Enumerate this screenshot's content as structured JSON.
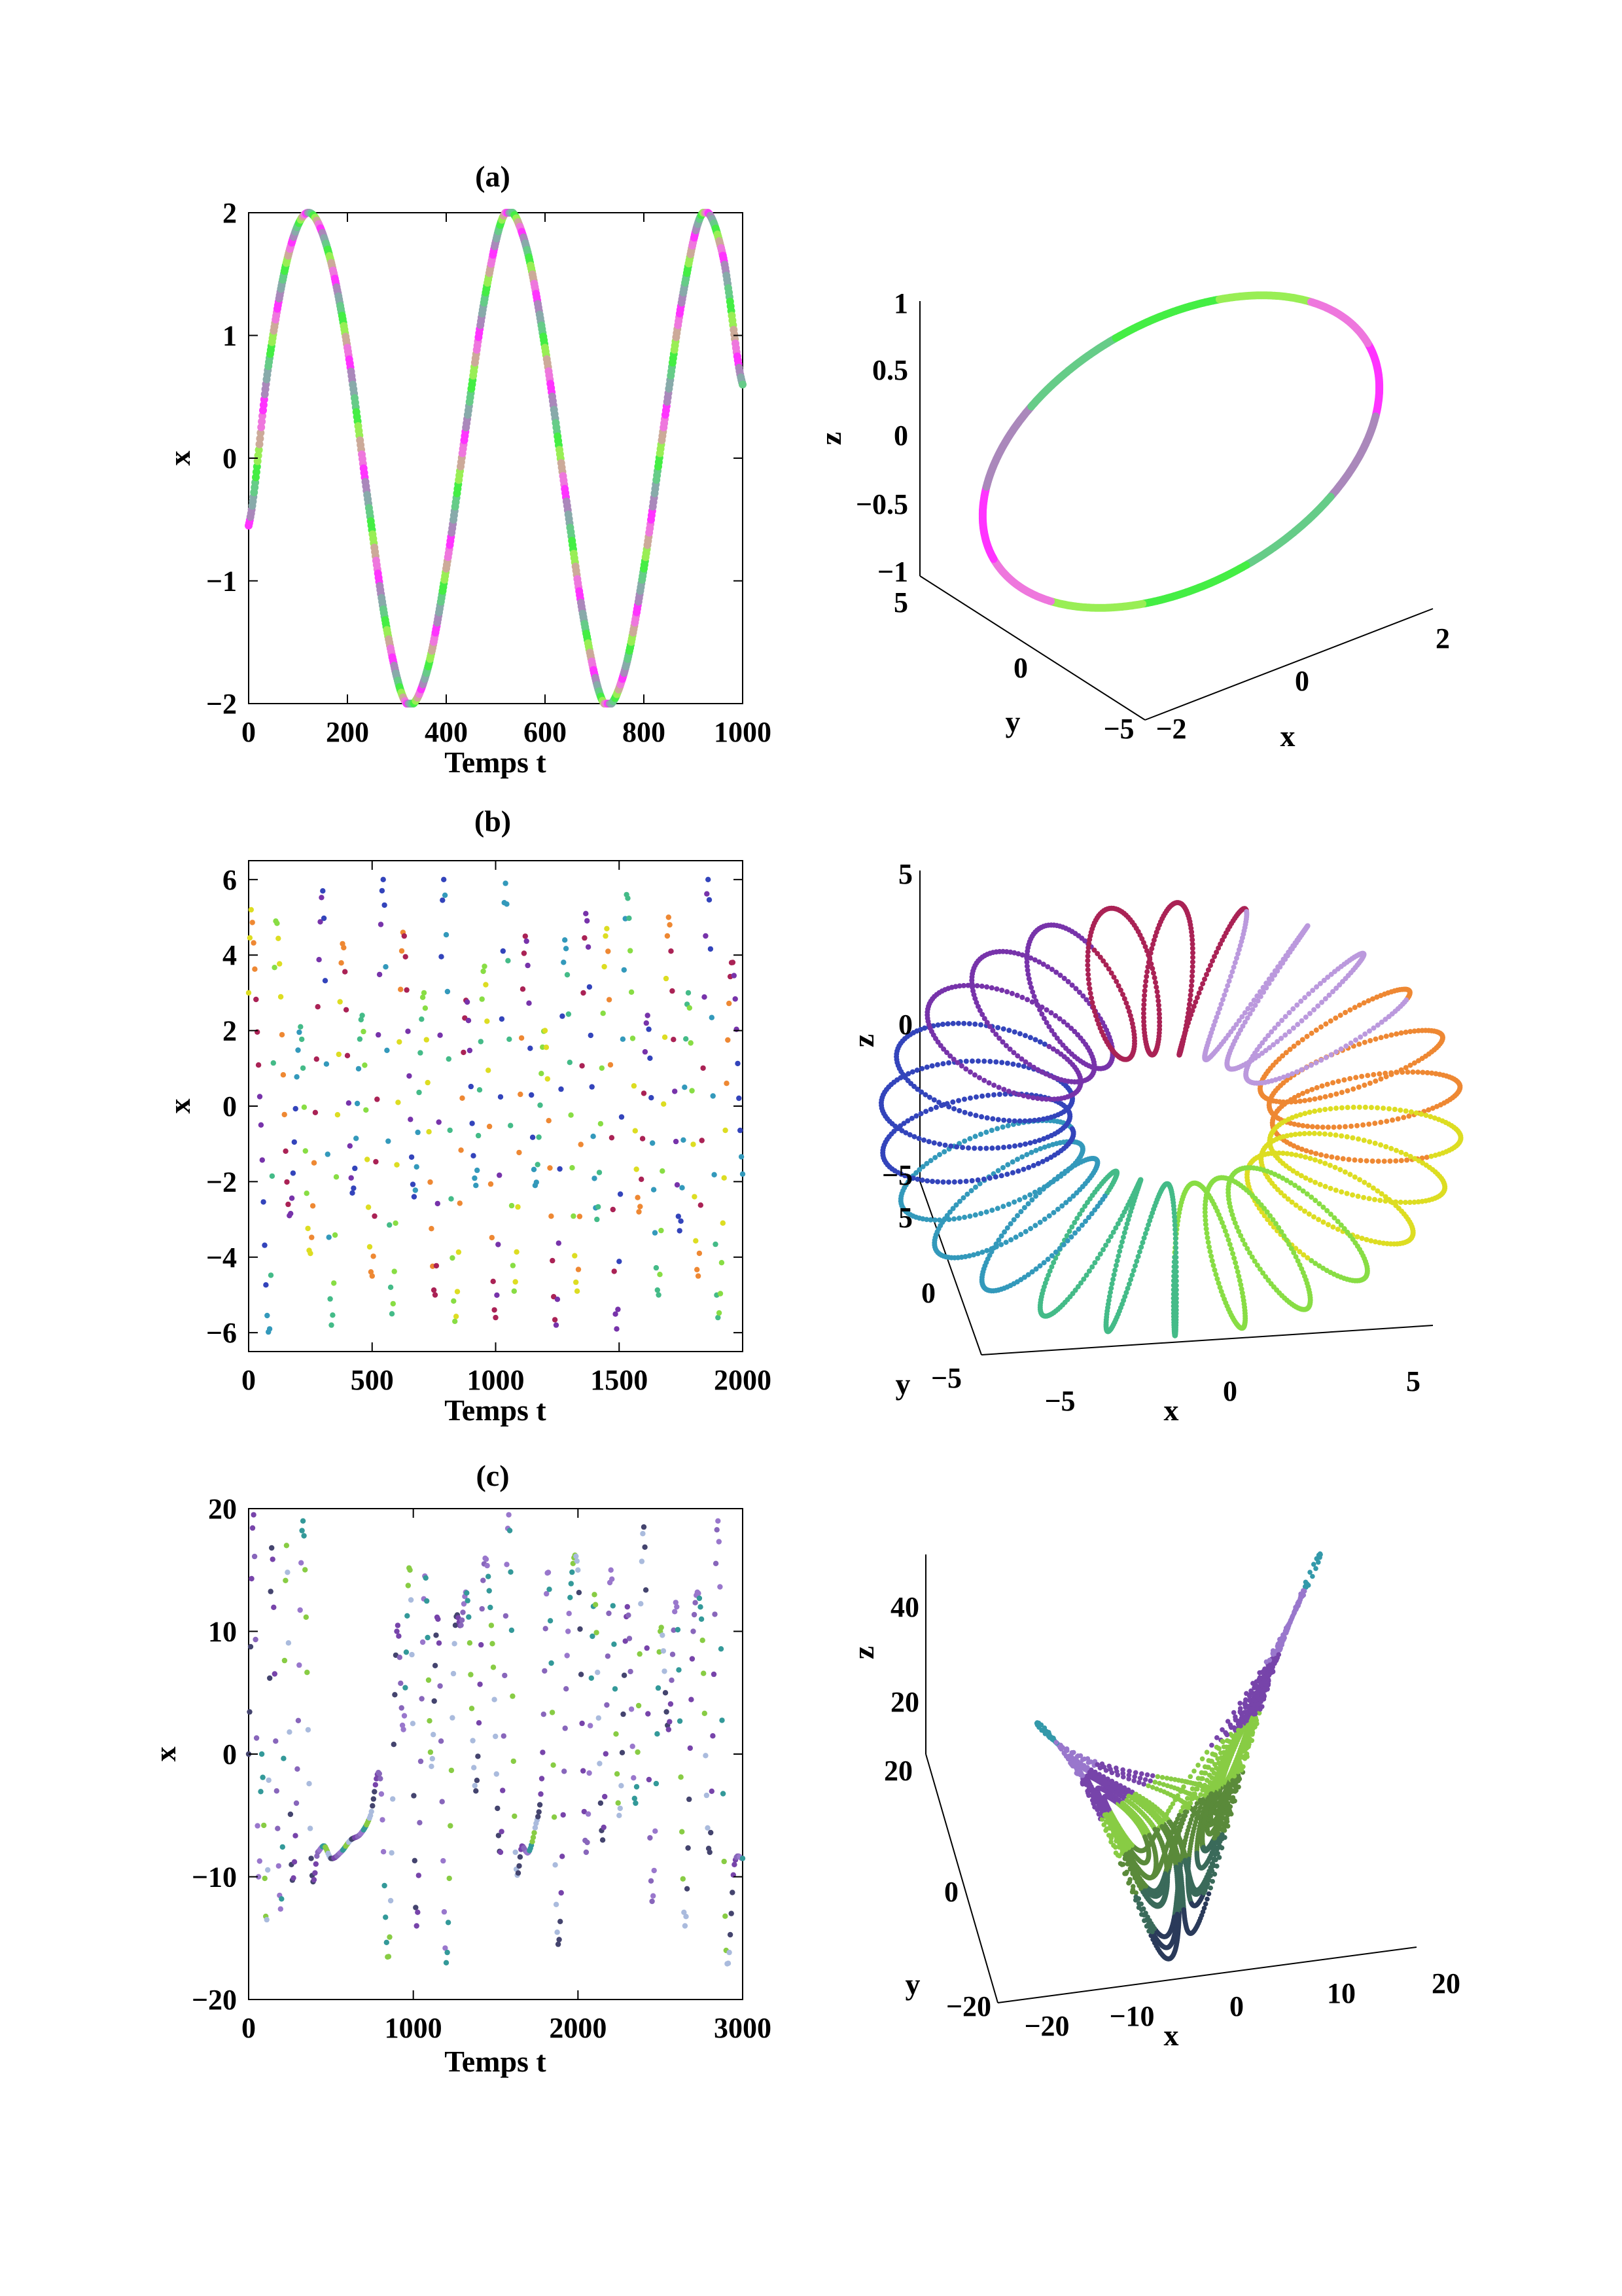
{
  "chart_data": [
    {
      "id": "a-time",
      "type": "scatter",
      "title": "(a)",
      "xlabel": "Temps t",
      "ylabel": "x",
      "xlim": [
        0,
        1000
      ],
      "ylim": [
        -2,
        2
      ],
      "xticks": [
        0,
        200,
        400,
        600,
        800,
        1000
      ],
      "yticks": [
        -2,
        -1,
        0,
        1,
        2
      ],
      "xtick_labels": [
        "0",
        "200",
        "400",
        "600",
        "800",
        "1000"
      ],
      "ytick_labels": [
        "−2",
        "−1",
        "0",
        "1",
        "2"
      ],
      "x": [
        0,
        40,
        80,
        120,
        160,
        200,
        240,
        280,
        320,
        360,
        400,
        440,
        480,
        520,
        560,
        600,
        640,
        680,
        720,
        760,
        800,
        840,
        880,
        920,
        960,
        1000
      ],
      "y": [
        -0.55,
        0.75,
        1.65,
        2.0,
        1.7,
        0.9,
        -0.3,
        -1.4,
        -2.0,
        -1.75,
        -0.9,
        0.25,
        1.35,
        2.0,
        1.75,
        0.9,
        -0.25,
        -1.35,
        -2.0,
        -1.75,
        -0.9,
        0.25,
        1.35,
        2.0,
        1.65,
        0.6
      ],
      "grid": false,
      "colors": [
        "#ff33ff",
        "#aa88bb",
        "#88aaaa",
        "#66cc88",
        "#44ee44",
        "#99ee55",
        "#ccaa99",
        "#ee77dd"
      ]
    },
    {
      "id": "a-phase",
      "type": "scatter3d",
      "xlabel": "x",
      "ylabel": "y",
      "zlabel": "z",
      "xticks": [
        -2,
        0,
        2
      ],
      "yticks": [
        -5,
        0,
        5
      ],
      "zticks": [
        -1,
        -0.5,
        0,
        0.5,
        1
      ],
      "xtick_labels": [
        "−2",
        "0",
        "2"
      ],
      "ytick_labels": [
        "−5",
        "0",
        "5"
      ],
      "ztick_labels": [
        "−1",
        "−0.5",
        "0",
        "0.5",
        "1"
      ],
      "attractor": "limit cycle",
      "colors": [
        "#ff33ff",
        "#aa88bb",
        "#66cc88",
        "#44ee44",
        "#99ee55",
        "#ee77dd"
      ]
    },
    {
      "id": "b-time",
      "type": "scatter",
      "title": "(b)",
      "xlabel": "Temps t",
      "ylabel": "x",
      "xlim": [
        0,
        2000
      ],
      "ylim": [
        -6.5,
        6.5
      ],
      "xticks": [
        0,
        500,
        1000,
        1500,
        2000
      ],
      "yticks": [
        -6,
        -4,
        -2,
        0,
        2,
        4,
        6
      ],
      "xtick_labels": [
        "0",
        "500",
        "1000",
        "1500",
        "2000"
      ],
      "ytick_labels": [
        "−6",
        "−4",
        "−2",
        "0",
        "2",
        "4",
        "6"
      ],
      "x": [
        0,
        10,
        50,
        85,
        110,
        165,
        210,
        250,
        300,
        335,
        380,
        420,
        460,
        500,
        545,
        580,
        625,
        670,
        710,
        755,
        790,
        835,
        880,
        920,
        955,
        1000,
        1040,
        1075,
        1120,
        1160,
        1200,
        1245,
        1280,
        1330,
        1365,
        1410,
        1450,
        1490,
        1530,
        1580,
        1615,
        1660,
        1700,
        1745,
        1780,
        1820,
        1860,
        1900,
        1955,
        2000
      ],
      "y": [
        3.0,
        5.2,
        -0.5,
        -5.9,
        4.9,
        -2.9,
        2.1,
        -3.9,
        5.7,
        -5.8,
        4.3,
        -2.3,
        2.4,
        -4.5,
        6.0,
        -5.5,
        4.6,
        -2.4,
        3.0,
        -5.0,
        6.0,
        -5.7,
        2.8,
        -2.1,
        3.7,
        -5.6,
        5.9,
        -4.9,
        4.5,
        -2.1,
        2.0,
        -5.8,
        4.4,
        -4.9,
        5.1,
        -3.0,
        4.7,
        -5.9,
        5.6,
        -2.8,
        2.4,
        -5.0,
        5.0,
        -3.3,
        3.0,
        -4.5,
        6.0,
        -5.6,
        3.8,
        -1.8
      ],
      "grid": false,
      "colors": [
        "#dddd22",
        "#ee8833",
        "#aa2255",
        "#7733aa",
        "#3344bb",
        "#3399bb",
        "#44bb88",
        "#88dd44"
      ]
    },
    {
      "id": "b-phase",
      "type": "scatter3d",
      "xlabel": "x",
      "ylabel": "y",
      "zlabel": "z",
      "xticks": [
        -5,
        0,
        5
      ],
      "yticks": [
        -5,
        0,
        5
      ],
      "zticks": [
        -5,
        0,
        5
      ],
      "xtick_labels": [
        "−5",
        "0",
        "5"
      ],
      "ytick_labels": [
        "−5",
        "0",
        "5"
      ],
      "ztick_labels": [
        "−5",
        "0",
        "5"
      ],
      "attractor": "torus",
      "colors": [
        "#ee8833",
        "#dddd22",
        "#88dd44",
        "#44bb88",
        "#3399bb",
        "#3344bb",
        "#7733aa",
        "#aa2255",
        "#bb99dd"
      ]
    },
    {
      "id": "c-time",
      "type": "scatter",
      "title": "(c)",
      "xlabel": "Temps t",
      "ylabel": "x",
      "xlim": [
        0,
        3000
      ],
      "ylim": [
        -20,
        20
      ],
      "xticks": [
        0,
        1000,
        2000,
        3000
      ],
      "yticks": [
        -20,
        -10,
        0,
        10,
        20
      ],
      "xtick_labels": [
        "0",
        "1000",
        "2000",
        "3000"
      ],
      "ytick_labels": [
        "−20",
        "−10",
        "0",
        "10",
        "20"
      ],
      "x": [
        0,
        30,
        60,
        80,
        110,
        140,
        170,
        200,
        230,
        260,
        290,
        330,
        380,
        420,
        460,
        500,
        560,
        620,
        680,
        740,
        800,
        850,
        900,
        940,
        980,
        1020,
        1070,
        1110,
        1150,
        1200,
        1250,
        1290,
        1330,
        1380,
        1430,
        1480,
        1530,
        1580,
        1620,
        1660,
        1700,
        1740,
        1780,
        1820,
        1880,
        1940,
        2000,
        2050,
        2100,
        2150,
        2200,
        2250,
        2300,
        2350,
        2400,
        2450,
        2500,
        2550,
        2600,
        2650,
        2700,
        2750,
        2800,
        2850,
        2900,
        2950,
        3000
      ],
      "y": [
        0,
        19.5,
        -10.0,
        0,
        -13.5,
        16.8,
        -3.0,
        -11.8,
        17.0,
        -9.0,
        -4.0,
        19.0,
        -8.5,
        -8.0,
        -7.5,
        -8.5,
        -8.0,
        -7.0,
        -6.5,
        -5.0,
        -2.0,
        -16.5,
        10.0,
        2.0,
        15.0,
        -14.0,
        14.5,
        -1.0,
        11.0,
        -17.0,
        9.0,
        10.5,
        12.5,
        -3.0,
        15.5,
        9.0,
        -8.0,
        19.5,
        -8.0,
        -7.5,
        -8.0,
        -6.0,
        -2.0,
        14.8,
        -15.5,
        10.0,
        15.0,
        -8.0,
        13.0,
        -7.0,
        15.0,
        -5.0,
        12.0,
        -4.0,
        18.5,
        -12.0,
        10.0,
        2.0,
        12.0,
        -14.0,
        10.0,
        11.0,
        -8.0,
        19.0,
        -16.0,
        -9.0,
        -8.5
      ],
      "grid": false,
      "colors": [
        "#44446e",
        "#7744aa",
        "#8866bb",
        "#9977cc",
        "#339999",
        "#88cc44",
        "#aabbdd"
      ]
    },
    {
      "id": "c-phase",
      "type": "scatter3d",
      "xlabel": "x",
      "ylabel": "y",
      "zlabel": "z",
      "xticks": [
        -20,
        -10,
        0,
        10,
        20
      ],
      "yticks": [
        -20,
        0,
        20
      ],
      "zticks": [
        20,
        40
      ],
      "xtick_labels": [
        "−20",
        "−10",
        "0",
        "10",
        "20"
      ],
      "ytick_labels": [
        "−20",
        "0",
        "20"
      ],
      "ztick_labels": [
        "20",
        "40"
      ],
      "attractor": "lorenz",
      "colors": [
        "#1a1a3a",
        "#2a3a5a",
        "#3a6a5a",
        "#5a8a3a",
        "#88cc44",
        "#7744aa",
        "#9977cc",
        "#3399aa"
      ]
    }
  ]
}
